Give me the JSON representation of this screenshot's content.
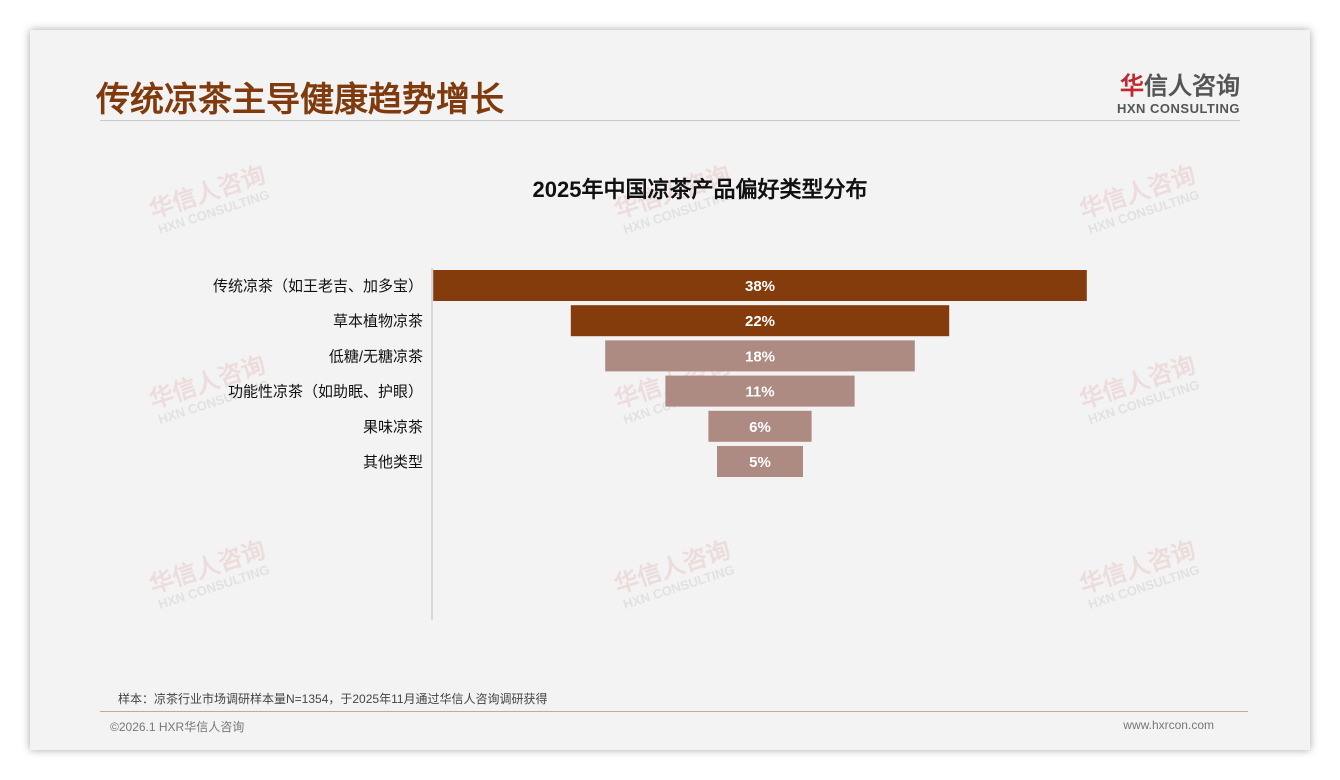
{
  "header": {
    "title": "传统凉茶主导健康趋势增长",
    "logo_cn_mark": "华",
    "logo_cn": "信人咨询",
    "logo_en": "HXN CONSULTING"
  },
  "watermark": {
    "cn": "华信人咨询",
    "en": "HXN CONSULTING"
  },
  "chart_data": {
    "type": "bar",
    "orientation": "horizontal-centered-funnel",
    "title": "2025年中国凉茶产品偏好类型分布",
    "categories": [
      "传统凉茶（如王老吉、加多宝）",
      "草本植物凉茶",
      "低糖/无糖凉茶",
      "功能性凉茶（如助眠、护眼）",
      "果味凉茶",
      "其他类型"
    ],
    "values": [
      38,
      22,
      18,
      11,
      6,
      5
    ],
    "labels": [
      "38%",
      "22%",
      "18%",
      "11%",
      "6%",
      "5%"
    ],
    "colors": [
      "#843c0c",
      "#843c0c",
      "#ad8b82",
      "#ad8b82",
      "#ad8b82",
      "#ad8b82"
    ],
    "unit": "%"
  },
  "footer": {
    "note": "样本：凉茶行业市场调研样本量N=1354，于2025年11月通过华信人咨询调研获得",
    "copyright": "©2026.1 HXR华信人咨询",
    "url": "www.hxrcon.com"
  }
}
